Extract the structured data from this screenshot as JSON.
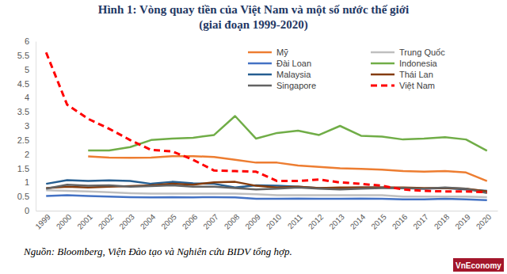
{
  "chart_data": {
    "type": "line",
    "title": "Hình 1: Vòng quay tiền của Việt Nam và một số nước thế giới",
    "subtitle": "(giai đoạn 1999-2020)",
    "source": "Nguồn: Bloomberg, Viện Đào tạo và Nghiên cứu BIDV tổng hợp.",
    "logo": "VnEconomy",
    "categories": [
      "1999",
      "2000",
      "2001",
      "2002",
      "2003",
      "2004",
      "2005",
      "2006",
      "2007",
      "2008",
      "2009",
      "2010",
      "2011",
      "2012",
      "2013",
      "2014",
      "2015",
      "2016",
      "2017",
      "2018",
      "2019",
      "2020"
    ],
    "ylim": [
      0,
      6
    ],
    "yticks": [
      0,
      0.5,
      1,
      1.5,
      2,
      2.5,
      3,
      3.5,
      4,
      4.5,
      5,
      5.5,
      6
    ],
    "grid": false,
    "legend": "top-right",
    "series": [
      {
        "name": "Mỹ",
        "color": "#ed7d31",
        "values": [
          null,
          null,
          1.92,
          1.88,
          1.87,
          1.88,
          1.93,
          1.93,
          1.9,
          1.8,
          1.7,
          1.7,
          1.6,
          1.55,
          1.5,
          1.48,
          1.45,
          1.4,
          1.38,
          1.4,
          1.35,
          1.05
        ]
      },
      {
        "name": "Trung Quốc",
        "color": "#bfbfbf",
        "values": [
          0.72,
          0.7,
          0.68,
          0.65,
          0.62,
          0.6,
          0.6,
          0.6,
          0.6,
          0.6,
          0.58,
          0.55,
          0.55,
          0.55,
          0.55,
          0.55,
          0.55,
          0.5,
          0.5,
          0.5,
          0.5,
          0.48
        ]
      },
      {
        "name": "Đài Loan",
        "color": "#4472c4",
        "values": [
          0.52,
          0.55,
          0.52,
          0.5,
          0.48,
          0.47,
          0.48,
          0.47,
          0.48,
          0.47,
          0.42,
          0.42,
          0.43,
          0.42,
          0.42,
          0.43,
          0.42,
          0.4,
          0.4,
          0.42,
          0.4,
          0.37
        ]
      },
      {
        "name": "Indonesia",
        "color": "#70ad47",
        "values": [
          null,
          null,
          2.13,
          2.13,
          2.25,
          2.5,
          2.55,
          2.58,
          2.68,
          3.35,
          2.55,
          2.75,
          2.83,
          2.68,
          3.0,
          2.65,
          2.62,
          2.52,
          2.55,
          2.6,
          2.52,
          2.12
        ]
      },
      {
        "name": "Malaysia",
        "color": "#255e91",
        "values": [
          0.95,
          1.08,
          1.05,
          1.07,
          1.05,
          0.95,
          1.02,
          0.97,
          0.95,
          0.82,
          0.9,
          0.88,
          0.85,
          0.8,
          0.8,
          0.82,
          0.82,
          0.8,
          0.78,
          0.8,
          0.75,
          0.7
        ]
      },
      {
        "name": "Thái Lan",
        "color": "#843c0c",
        "values": [
          0.8,
          0.85,
          0.82,
          0.85,
          0.87,
          0.9,
          0.95,
          0.92,
          1.0,
          1.02,
          0.88,
          0.82,
          0.85,
          0.8,
          0.82,
          0.82,
          0.82,
          0.82,
          0.8,
          0.8,
          0.78,
          0.68
        ]
      },
      {
        "name": "Singapore",
        "color": "#636363",
        "values": [
          0.78,
          0.92,
          0.88,
          0.9,
          0.85,
          0.87,
          0.9,
          0.85,
          0.85,
          0.8,
          0.75,
          0.78,
          0.82,
          0.78,
          0.75,
          0.78,
          0.8,
          0.8,
          0.78,
          0.82,
          0.78,
          0.62
        ]
      },
      {
        "name": "Việt Nam",
        "color": "#ff0000",
        "line_style": "dashed",
        "values": [
          5.6,
          3.75,
          3.25,
          2.9,
          2.5,
          2.15,
          2.1,
          1.8,
          1.42,
          1.4,
          1.38,
          1.05,
          1.05,
          1.1,
          1.0,
          0.95,
          0.88,
          0.75,
          0.7,
          0.68,
          0.68,
          0.65
        ]
      }
    ]
  }
}
